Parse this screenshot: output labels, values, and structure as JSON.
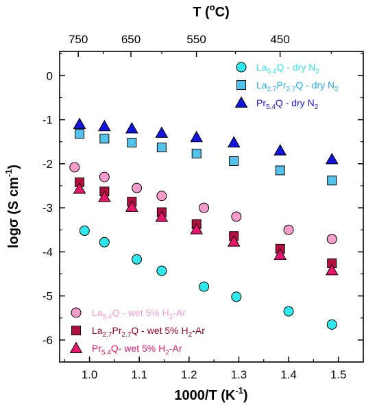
{
  "chart_data": {
    "type": "scatter",
    "xlabel": "1000/T (K",
    "xlabel_sup": "-1",
    "xlabel_end": ")",
    "ylabel": "logσ (S cm",
    "ylabel_sup": "-1",
    "ylabel_end": ")",
    "top_axis_label": "T (",
    "top_axis_label_sup": "o",
    "top_axis_label_end": "C)",
    "xlim": [
      0.94,
      1.55
    ],
    "ylim": [
      -6.5,
      0.55
    ],
    "x_ticks": [
      1.0,
      1.1,
      1.2,
      1.3,
      1.4,
      1.5
    ],
    "x_tick_labels": [
      "1.0",
      "1.1",
      "1.2",
      "1.3",
      "1.4",
      "1.5"
    ],
    "y_ticks": [
      0,
      -1,
      -2,
      -3,
      -4,
      -5,
      -6
    ],
    "y_tick_labels": [
      "0",
      "-1",
      "-2",
      "-3",
      "-4",
      "-5",
      "-6"
    ],
    "top_ticks_celsius": [
      750,
      650,
      550,
      450
    ],
    "top_tick_labels": [
      "750",
      "650",
      "550",
      "450"
    ],
    "grid": false,
    "series": [
      {
        "name": "La5.4Q - dry N2",
        "legend": [
          {
            "t": "La"
          },
          {
            "t": "5.4",
            "s": "sub"
          },
          {
            "t": "Q - dry N"
          },
          {
            "t": "2",
            "s": "sub"
          }
        ],
        "marker": "circle",
        "color": "#2ee8ec",
        "text_color": "#2ee8ec",
        "legend_position": "top-right",
        "x": [
          0.99,
          1.03,
          1.095,
          1.145,
          1.23,
          1.295,
          1.4,
          1.487
        ],
        "y": [
          -3.52,
          -3.78,
          -4.17,
          -4.43,
          -4.79,
          -5.02,
          -5.35,
          -5.65
        ]
      },
      {
        "name": "La2.7Pr2.7Q - dry N2",
        "legend": [
          {
            "t": "La"
          },
          {
            "t": "2.7",
            "s": "sub"
          },
          {
            "t": "Pr"
          },
          {
            "t": "2.7",
            "s": "sub"
          },
          {
            "t": "Q - dry N"
          },
          {
            "t": "2",
            "s": "sub"
          }
        ],
        "marker": "square",
        "color": "#54c3ec",
        "text_color": "#22aee8",
        "legend_position": "top-right",
        "x": [
          0.98,
          1.03,
          1.085,
          1.145,
          1.215,
          1.29,
          1.383,
          1.487
        ],
        "y": [
          -1.32,
          -1.43,
          -1.52,
          -1.63,
          -1.77,
          -1.94,
          -2.15,
          -2.38
        ]
      },
      {
        "name": "Pr5.4Q - dry N2",
        "legend": [
          {
            "t": "Pr"
          },
          {
            "t": "5.4",
            "s": "sub"
          },
          {
            "t": "Q - dry N"
          },
          {
            "t": "2",
            "s": "sub"
          }
        ],
        "marker": "triangle",
        "color": "#1414dc",
        "text_color": "#1414dc",
        "legend_position": "top-right",
        "x": [
          0.98,
          1.03,
          1.085,
          1.145,
          1.215,
          1.29,
          1.383,
          1.487
        ],
        "y": [
          -1.1,
          -1.15,
          -1.2,
          -1.3,
          -1.4,
          -1.52,
          -1.7,
          -1.9
        ]
      },
      {
        "name": "La5.4Q - wet 5% H2-Ar",
        "legend": [
          {
            "t": "La"
          },
          {
            "t": "5.4",
            "s": "sub"
          },
          {
            "t": "Q - wet 5% H"
          },
          {
            "t": "2",
            "s": "sub"
          },
          {
            "t": "-Ar"
          }
        ],
        "marker": "circle",
        "color": "#f59ccd",
        "text_color": "#f59ccd",
        "legend_position": "bottom-left",
        "x": [
          0.97,
          1.03,
          1.095,
          1.145,
          1.23,
          1.295,
          1.4,
          1.487
        ],
        "y": [
          -2.08,
          -2.3,
          -2.55,
          -2.73,
          -3.0,
          -3.2,
          -3.5,
          -3.71
        ]
      },
      {
        "name": "La2.7Pr2.7Q - wet 5% H2-Ar",
        "legend": [
          {
            "t": "La"
          },
          {
            "t": "2.7",
            "s": "sub"
          },
          {
            "t": "Pr"
          },
          {
            "t": "2.7",
            "s": "sub"
          },
          {
            "t": "Q - wet 5% H"
          },
          {
            "t": "2",
            "s": "sub"
          },
          {
            "t": "-Ar"
          }
        ],
        "marker": "square",
        "color": "#b4103f",
        "text_color": "#a0002a",
        "legend_position": "bottom-left",
        "x": [
          0.98,
          1.03,
          1.085,
          1.145,
          1.215,
          1.29,
          1.383,
          1.487
        ],
        "y": [
          -2.42,
          -2.63,
          -2.86,
          -3.1,
          -3.37,
          -3.64,
          -3.93,
          -4.26
        ]
      },
      {
        "name": "Pr5.4Q- wet 5% H2-Ar",
        "legend": [
          {
            "t": "Pr"
          },
          {
            "t": "5.4",
            "s": "sub"
          },
          {
            "t": "Q- wet 5% H"
          },
          {
            "t": "2",
            "s": "sub"
          },
          {
            "t": "-Ar"
          }
        ],
        "marker": "triangle",
        "color": "#e8156c",
        "text_color": "#e8156c",
        "legend_position": "bottom-left",
        "x": [
          0.98,
          1.03,
          1.085,
          1.145,
          1.215,
          1.29,
          1.383,
          1.487
        ],
        "y": [
          -2.57,
          -2.76,
          -2.98,
          -3.21,
          -3.49,
          -3.77,
          -4.07,
          -4.42
        ]
      }
    ]
  }
}
